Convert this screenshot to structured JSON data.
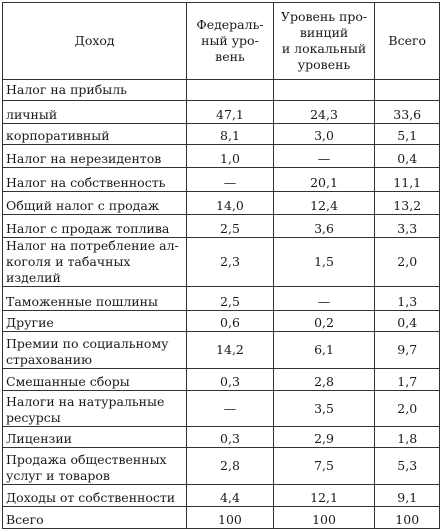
{
  "headers": {
    "income": "Доход",
    "federal": "Федераль-\nный уро-\nвень",
    "provincial": "Уровень про-\nвинций\nи локальный\nуровень",
    "total": "Всего"
  },
  "section_label": "Налог на прибыль",
  "rows": [
    {
      "name": "личный",
      "federal": "47,1",
      "provincial": "24,3",
      "total": "33,6"
    },
    {
      "name": "корпоративный",
      "federal": "8,1",
      "provincial": "3,0",
      "total": "5,1"
    },
    {
      "name": "Налог на нерезидентов",
      "federal": "1,0",
      "provincial": "—",
      "total": "0,4"
    },
    {
      "name": "Налог на собственность",
      "federal": "—",
      "provincial": "20,1",
      "total": "11,1"
    },
    {
      "name": "Общий налог с продаж",
      "federal": "14,0",
      "provincial": "12,4",
      "total": "13,2"
    },
    {
      "name": "Налог с продаж топлива",
      "federal": "2,5",
      "provincial": "3,6",
      "total": "3,3"
    },
    {
      "name": "Налог на потребление ал-\nкоголя и табачных изделий",
      "federal": "2,3",
      "provincial": "1,5",
      "total": "2,0"
    },
    {
      "name": "Таможенные пошлины",
      "federal": "2,5",
      "provincial": "—",
      "total": "1,3"
    },
    {
      "name": "Другие",
      "federal": "0,6",
      "provincial": "0,2",
      "total": "0,4"
    },
    {
      "name": "Премии по социальному\nстрахованию",
      "federal": "14,2",
      "provincial": "6,1",
      "total": "9,7"
    },
    {
      "name": "Смешанные сборы",
      "federal": "0,3",
      "provincial": "2,8",
      "total": "1,7"
    },
    {
      "name": "Налоги на натуральные\nресурсы",
      "federal": "—",
      "provincial": "3,5",
      "total": "2,0"
    },
    {
      "name": "Лицензии",
      "federal": "0,3",
      "provincial": "2,9",
      "total": "1,8"
    },
    {
      "name": "Продажа общественных\nуслуг и товаров",
      "federal": "2,8",
      "provincial": "7,5",
      "total": "5,3"
    },
    {
      "name": "Доходы от собственности",
      "federal": "4,4",
      "provincial": "12,1",
      "total": "9,1"
    },
    {
      "name": "Всего",
      "federal": "100",
      "provincial": "100",
      "total": "100"
    }
  ]
}
